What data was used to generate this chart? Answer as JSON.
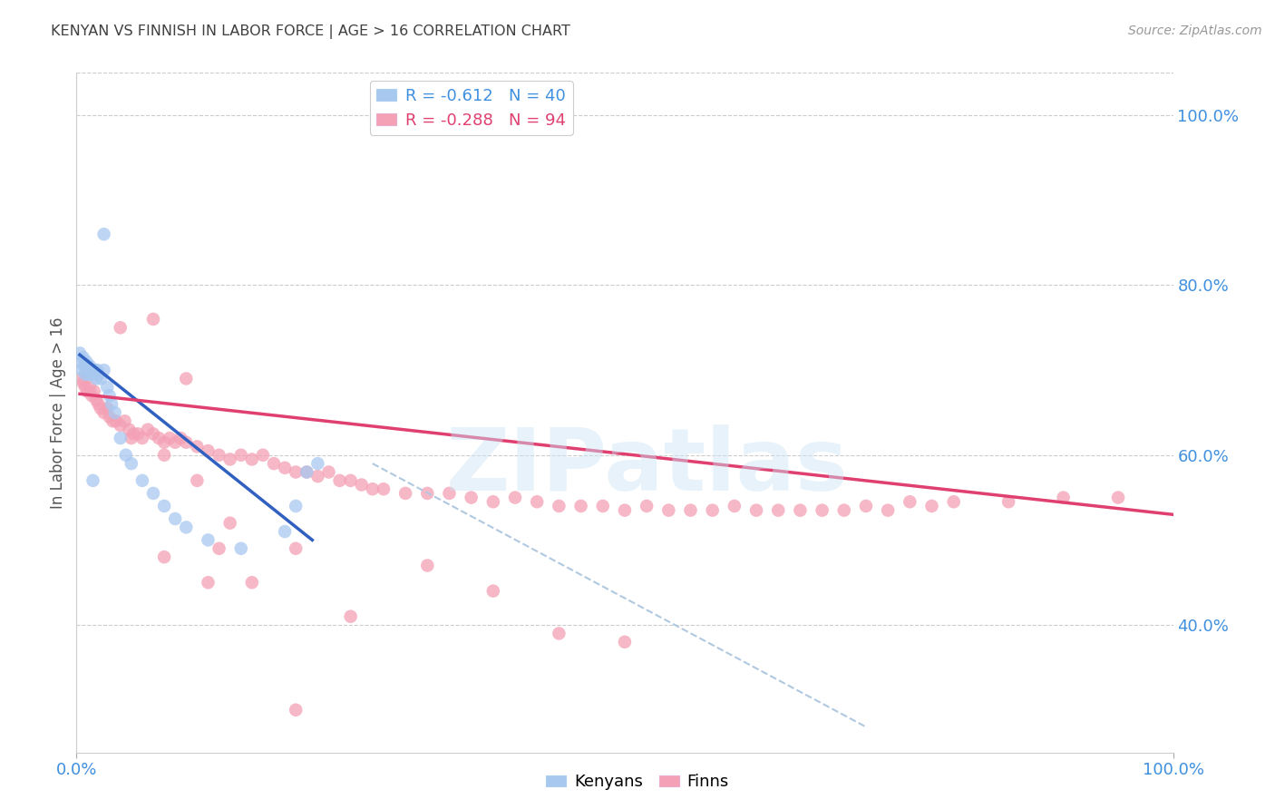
{
  "title": "KENYAN VS FINNISH IN LABOR FORCE | AGE > 16 CORRELATION CHART",
  "source": "Source: ZipAtlas.com",
  "ylabel": "In Labor Force | Age > 16",
  "xlim": [
    0.0,
    1.0
  ],
  "ylim": [
    0.25,
    1.05
  ],
  "xtick_positions": [
    0.0,
    1.0
  ],
  "xtick_labels": [
    "0.0%",
    "100.0%"
  ],
  "ytick_right_values": [
    0.4,
    0.6,
    0.8,
    1.0
  ],
  "ytick_right_labels": [
    "40.0%",
    "60.0%",
    "80.0%",
    "100.0%"
  ],
  "watermark": "ZIPatlas",
  "kenyan_color": "#a8c8f0",
  "finn_color": "#f4a0b5",
  "kenyan_line_color": "#3060c0",
  "finn_line_color": "#e04070",
  "dashed_line_color": "#b0c8e0",
  "background_color": "#ffffff",
  "grid_color": "#cccccc",
  "right_axis_color": "#4090e0",
  "title_color": "#404040",
  "legend_kenyan_label": "R = -0.612   N = 40",
  "legend_finn_label": "R = -0.288   N = 94",
  "bottom_legend_kenyan": "Kenyans",
  "bottom_legend_finn": "Finns",
  "kenyan_points_x": [
    0.003,
    0.004,
    0.005,
    0.006,
    0.007,
    0.008,
    0.009,
    0.01,
    0.011,
    0.012,
    0.013,
    0.014,
    0.015,
    0.016,
    0.017,
    0.018,
    0.019,
    0.02,
    0.022,
    0.025,
    0.028,
    0.03,
    0.032,
    0.035,
    0.04,
    0.045,
    0.05,
    0.06,
    0.07,
    0.08,
    0.09,
    0.1,
    0.12,
    0.15,
    0.19,
    0.2,
    0.21,
    0.22,
    0.025,
    0.015
  ],
  "kenyan_points_y": [
    0.72,
    0.71,
    0.7,
    0.715,
    0.705,
    0.695,
    0.71,
    0.7,
    0.695,
    0.705,
    0.7,
    0.695,
    0.7,
    0.695,
    0.7,
    0.69,
    0.7,
    0.695,
    0.69,
    0.7,
    0.68,
    0.67,
    0.66,
    0.65,
    0.62,
    0.6,
    0.59,
    0.57,
    0.555,
    0.54,
    0.525,
    0.515,
    0.5,
    0.49,
    0.51,
    0.54,
    0.58,
    0.59,
    0.86,
    0.57
  ],
  "finn_points_x": [
    0.004,
    0.006,
    0.008,
    0.01,
    0.012,
    0.014,
    0.016,
    0.018,
    0.02,
    0.022,
    0.025,
    0.028,
    0.03,
    0.033,
    0.036,
    0.04,
    0.044,
    0.048,
    0.052,
    0.056,
    0.06,
    0.065,
    0.07,
    0.075,
    0.08,
    0.085,
    0.09,
    0.095,
    0.1,
    0.11,
    0.12,
    0.13,
    0.14,
    0.15,
    0.16,
    0.17,
    0.18,
    0.19,
    0.2,
    0.21,
    0.22,
    0.23,
    0.24,
    0.25,
    0.26,
    0.27,
    0.28,
    0.3,
    0.32,
    0.34,
    0.36,
    0.38,
    0.4,
    0.42,
    0.44,
    0.46,
    0.48,
    0.5,
    0.52,
    0.54,
    0.56,
    0.58,
    0.6,
    0.62,
    0.64,
    0.66,
    0.68,
    0.7,
    0.72,
    0.74,
    0.76,
    0.78,
    0.8,
    0.85,
    0.9,
    0.95,
    0.04,
    0.07,
    0.1,
    0.13,
    0.2,
    0.25,
    0.32,
    0.38,
    0.44,
    0.5,
    0.05,
    0.08,
    0.11,
    0.14,
    0.08,
    0.12,
    0.16,
    0.2
  ],
  "finn_points_y": [
    0.69,
    0.685,
    0.68,
    0.675,
    0.68,
    0.67,
    0.675,
    0.665,
    0.66,
    0.655,
    0.65,
    0.655,
    0.645,
    0.64,
    0.64,
    0.635,
    0.64,
    0.63,
    0.625,
    0.625,
    0.62,
    0.63,
    0.625,
    0.62,
    0.615,
    0.62,
    0.615,
    0.62,
    0.615,
    0.61,
    0.605,
    0.6,
    0.595,
    0.6,
    0.595,
    0.6,
    0.59,
    0.585,
    0.58,
    0.58,
    0.575,
    0.58,
    0.57,
    0.57,
    0.565,
    0.56,
    0.56,
    0.555,
    0.555,
    0.555,
    0.55,
    0.545,
    0.55,
    0.545,
    0.54,
    0.54,
    0.54,
    0.535,
    0.54,
    0.535,
    0.535,
    0.535,
    0.54,
    0.535,
    0.535,
    0.535,
    0.535,
    0.535,
    0.54,
    0.535,
    0.545,
    0.54,
    0.545,
    0.545,
    0.55,
    0.55,
    0.75,
    0.76,
    0.69,
    0.49,
    0.49,
    0.41,
    0.47,
    0.44,
    0.39,
    0.38,
    0.62,
    0.6,
    0.57,
    0.52,
    0.48,
    0.45,
    0.45,
    0.3
  ],
  "kenyan_trend_x": [
    0.003,
    0.215
  ],
  "kenyan_trend_y": [
    0.718,
    0.5
  ],
  "finn_trend_x": [
    0.003,
    1.0
  ],
  "finn_trend_y": [
    0.672,
    0.53
  ],
  "dashed_trend_x": [
    0.27,
    0.72
  ],
  "dashed_trend_y": [
    0.59,
    0.28
  ]
}
